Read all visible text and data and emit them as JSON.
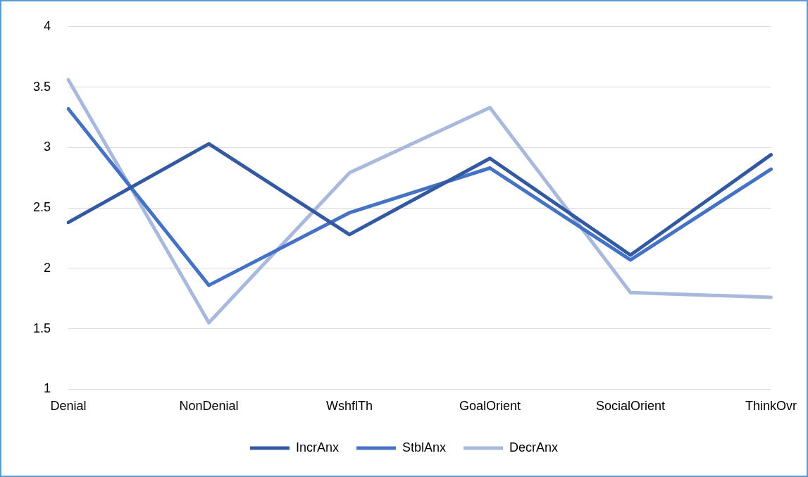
{
  "chart_data": {
    "type": "line",
    "categories": [
      "Denial",
      "NonDenial",
      "WshflTh",
      "GoalOrient",
      "SocialOrient",
      "ThinkOvr"
    ],
    "series": [
      {
        "name": "IncrAnx",
        "color": "#335aa1",
        "values": [
          2.38,
          3.03,
          2.28,
          2.91,
          2.11,
          2.94
        ]
      },
      {
        "name": "StblAnx",
        "color": "#4472c4",
        "values": [
          3.32,
          1.86,
          2.46,
          2.83,
          2.07,
          2.82
        ]
      },
      {
        "name": "DecrAnx",
        "color": "#a9b8dd",
        "values": [
          3.56,
          1.55,
          2.79,
          3.33,
          1.8,
          1.76
        ]
      }
    ],
    "ylim": [
      1,
      4
    ],
    "yticks": [
      1,
      1.5,
      2,
      2.5,
      3,
      3.5,
      4
    ],
    "grid": "y",
    "legend": "bottom",
    "marker": "none",
    "line_style": "solid"
  }
}
